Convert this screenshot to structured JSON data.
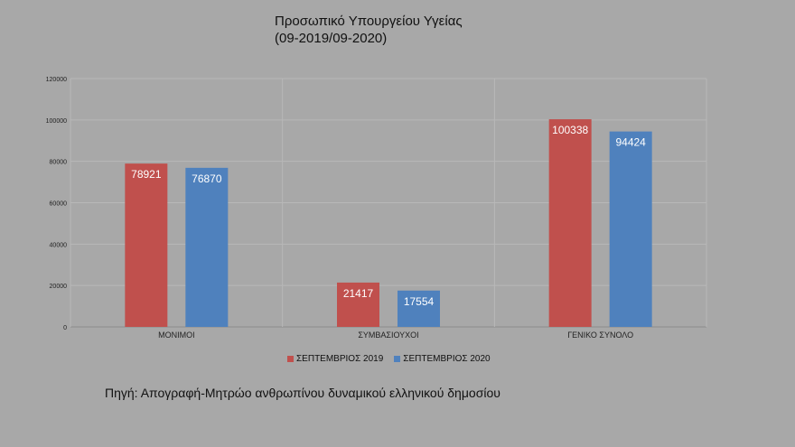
{
  "chart_data": {
    "type": "bar",
    "title": "Προσωπικό Υπουργείου Υγείας",
    "subtitle": "(09-2019/09-2020)",
    "categories": [
      "ΜΟΝΙΜΟΙ",
      "ΣΥΜΒΑΣΙΟΥΧΟΙ",
      "ΓΕΝΙΚΟ ΣΥΝΟΛΟ"
    ],
    "series": [
      {
        "name": "ΣΕΠΤΕΜΒΡΙΟΣ 2019",
        "values": [
          78921,
          21417,
          100338
        ],
        "color": "#c0504d"
      },
      {
        "name": "ΣΕΠΤΕΜΒΡΙΟΣ 2020",
        "values": [
          76870,
          17554,
          94424
        ],
        "color": "#4f81bd"
      }
    ],
    "ylim": [
      0,
      120000
    ],
    "yticks": [
      0,
      20000,
      40000,
      60000,
      80000,
      100000,
      120000
    ],
    "grid": true,
    "legend_position": "bottom",
    "xlabel": "",
    "ylabel": ""
  },
  "source_note": "Πηγή: Απογραφή-Μητρώο ανθρωπίνου δυναμικού ελληνικού δημοσίου"
}
